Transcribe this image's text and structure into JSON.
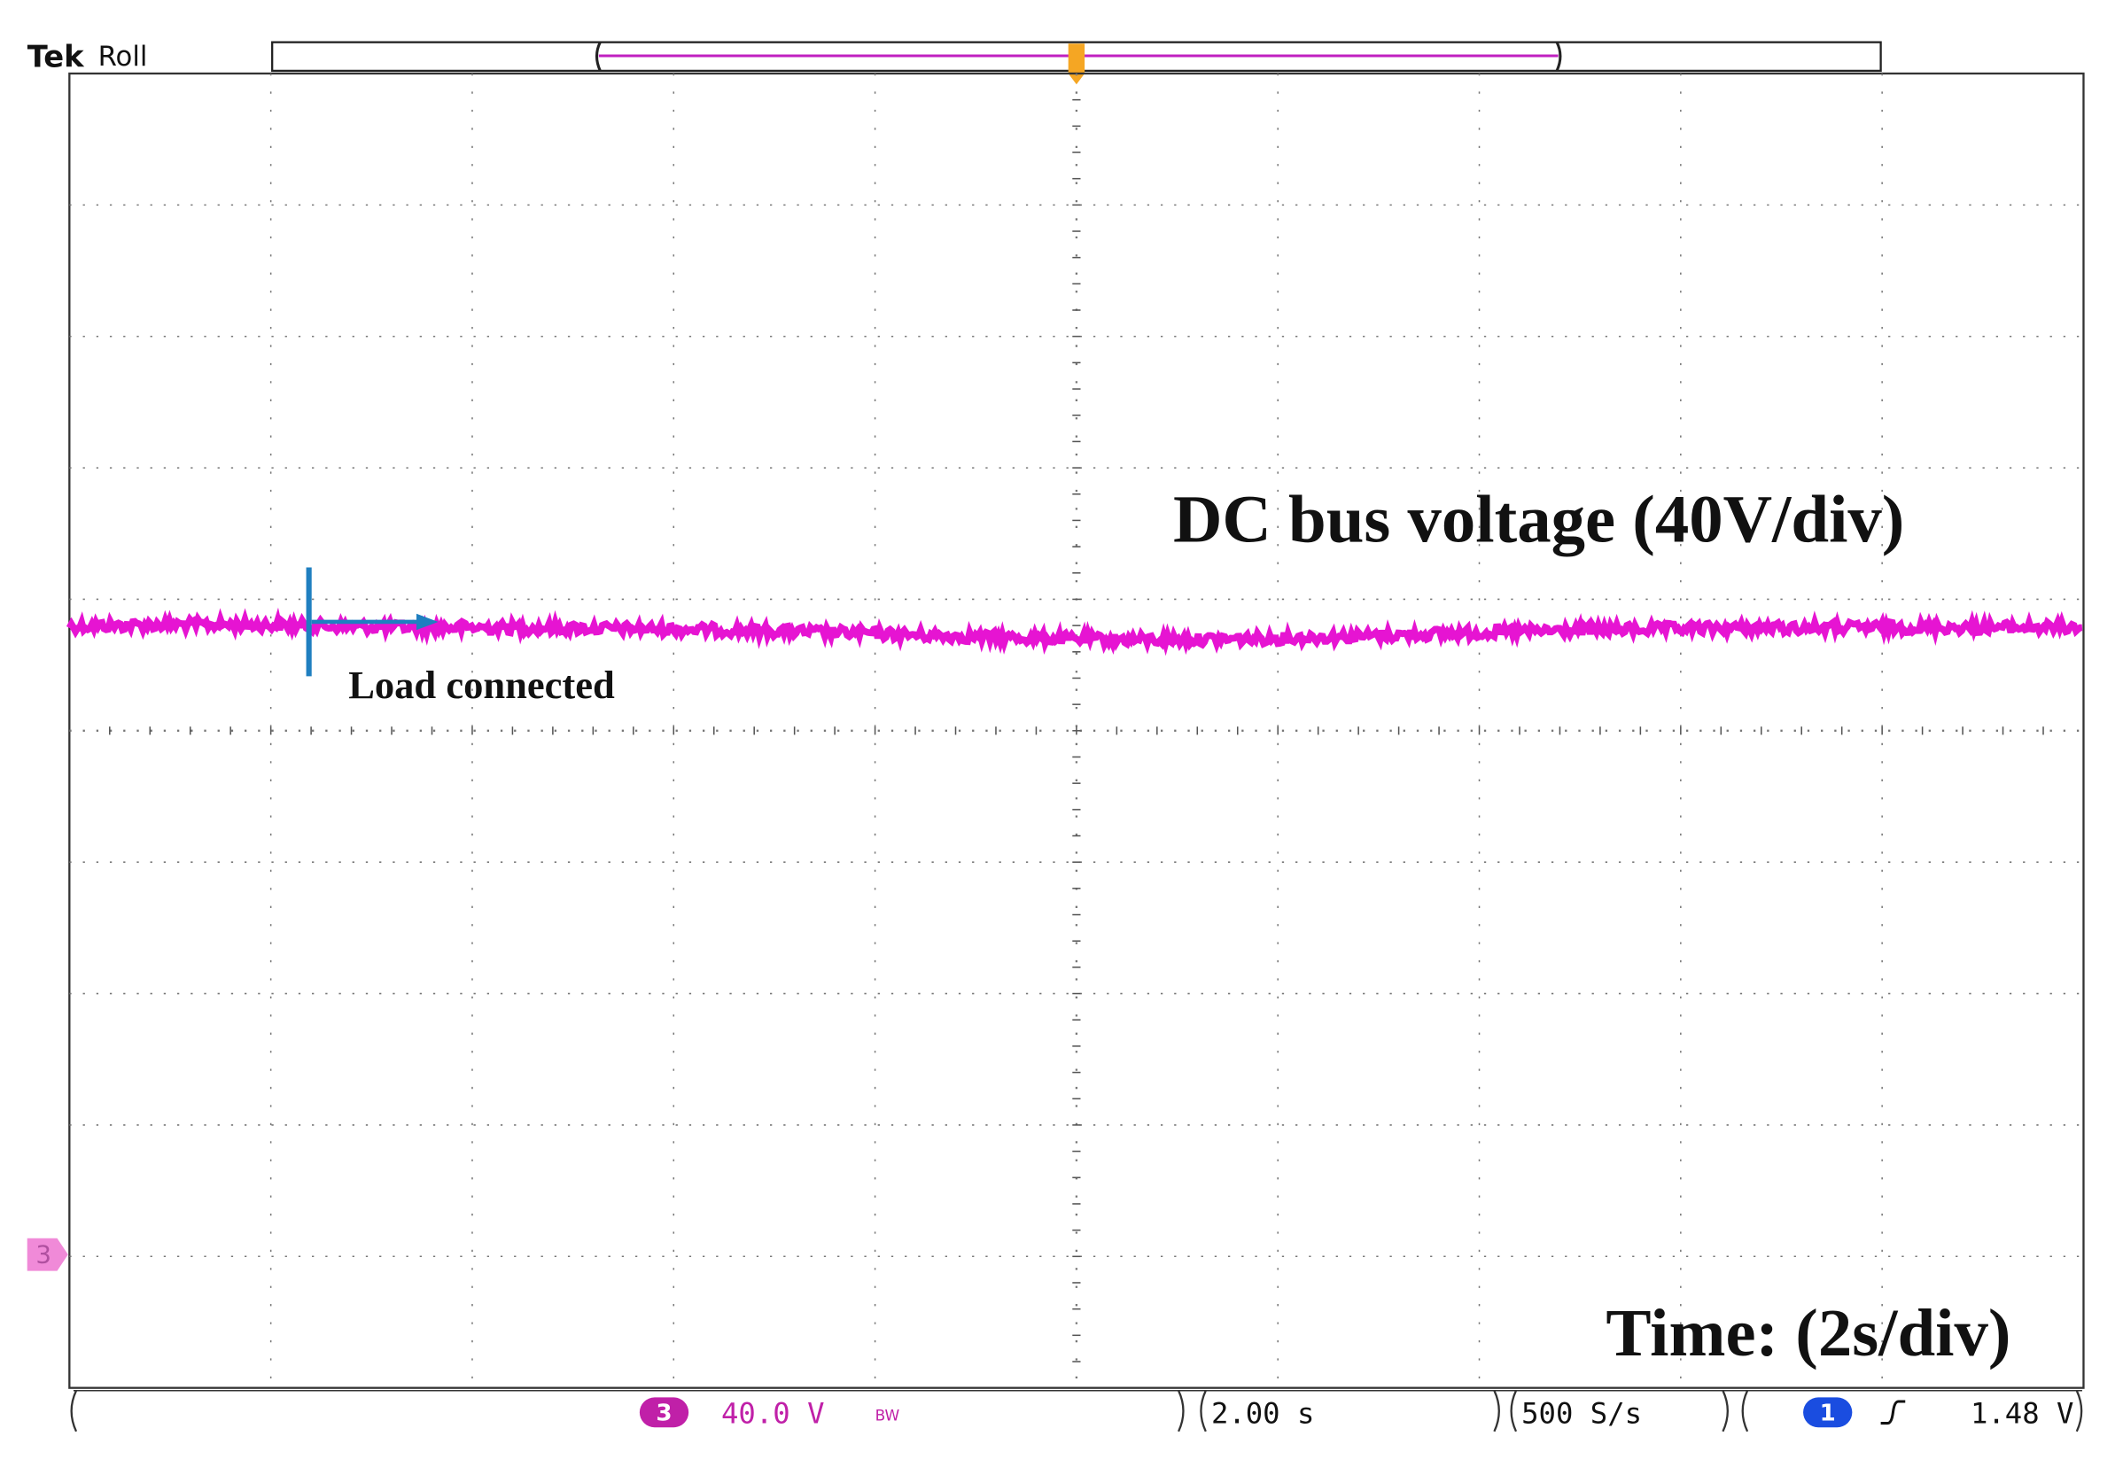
{
  "header": {
    "brand": "Tek",
    "mode": "Roll"
  },
  "annotations": {
    "signal": "DC bus voltage (40V/div)",
    "event": "Load connected",
    "time": "Time: (2s/div)"
  },
  "channel_marker": "3",
  "status_bar": {
    "channel": "3",
    "scale": "40.0 V",
    "bandwidth": "BW",
    "timebase": "2.00 s",
    "sample_rate": "500 S/s",
    "trigger_source": "1",
    "trigger_level": "1.48 V"
  }
}
